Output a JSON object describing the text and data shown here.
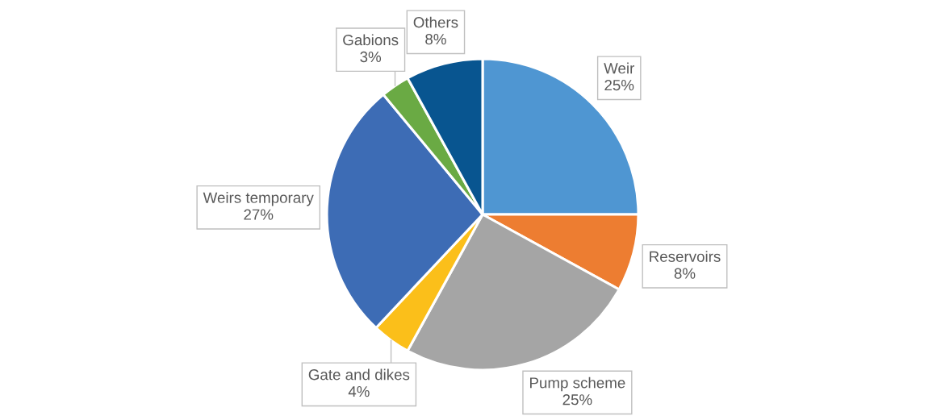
{
  "chart_data": {
    "type": "pie",
    "categories": [
      "Weir",
      "Reservoirs",
      "Pump scheme",
      "Gate and dikes",
      "Weirs temporary",
      "Gabions",
      "Others"
    ],
    "values": [
      25,
      8,
      25,
      4,
      27,
      3,
      8
    ],
    "colors": [
      "#4f96d2",
      "#ed7d31",
      "#a5a5a5",
      "#fbbf1a",
      "#3d6cb5",
      "#6aaa44",
      "#085590"
    ],
    "data_labels": true,
    "value_labels": [
      "25%",
      "8%",
      "25%",
      "4%",
      "27%",
      "3%",
      "8%"
    ]
  }
}
